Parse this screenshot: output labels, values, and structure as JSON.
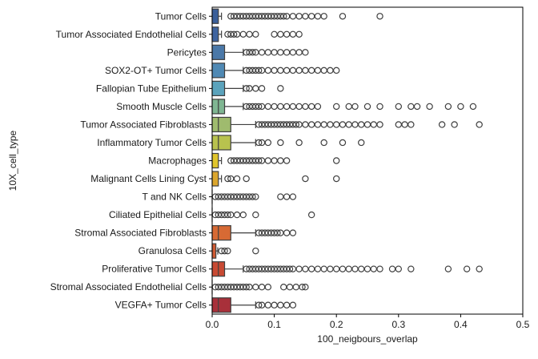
{
  "chart_data": {
    "type": "box",
    "orientation": "horizontal",
    "title": "",
    "xlabel": "100_neigbours_overlap",
    "ylabel": "10X_cell_type",
    "xlim": [
      0.0,
      0.5
    ],
    "xticks": [
      "0.0",
      "0.1",
      "0.2",
      "0.3",
      "0.4",
      "0.5"
    ],
    "xtick_values": [
      0.0,
      0.1,
      0.2,
      0.3,
      0.4,
      0.5
    ],
    "grid": false,
    "legend": "none",
    "categories": [
      {
        "label": "Tumor Cells",
        "color": "#3a5f9a",
        "q1": 0,
        "median": 0.003,
        "q3": 0.01,
        "whislo": 0,
        "whishi": 0.015,
        "outliers": [
          0.03,
          0.035,
          0.04,
          0.045,
          0.05,
          0.055,
          0.06,
          0.065,
          0.07,
          0.075,
          0.08,
          0.085,
          0.09,
          0.095,
          0.1,
          0.105,
          0.11,
          0.115,
          0.12,
          0.13,
          0.14,
          0.15,
          0.16,
          0.17,
          0.18,
          0.21,
          0.27
        ]
      },
      {
        "label": "Tumor Associated Endothelial Cells",
        "color": "#3e64a0",
        "q1": 0,
        "median": 0.003,
        "q3": 0.01,
        "whislo": 0,
        "whishi": 0.015,
        "outliers": [
          0.025,
          0.03,
          0.035,
          0.04,
          0.05,
          0.06,
          0.07,
          0.1,
          0.11,
          0.12,
          0.13,
          0.14
        ]
      },
      {
        "label": "Pericytes",
        "color": "#4a78a8",
        "q1": 0,
        "median": 0.0,
        "q3": 0.02,
        "whislo": 0,
        "whishi": 0.05,
        "outliers": [
          0.055,
          0.06,
          0.065,
          0.07,
          0.08,
          0.09,
          0.1,
          0.11,
          0.12,
          0.13,
          0.14,
          0.15
        ]
      },
      {
        "label": "SOX2-OT+ Tumor Cells",
        "color": "#4f89b4",
        "q1": 0,
        "median": 0.0,
        "q3": 0.02,
        "whislo": 0,
        "whishi": 0.05,
        "outliers": [
          0.055,
          0.06,
          0.065,
          0.07,
          0.075,
          0.08,
          0.09,
          0.1,
          0.11,
          0.12,
          0.13,
          0.14,
          0.15,
          0.16,
          0.17,
          0.18,
          0.19,
          0.2
        ]
      },
      {
        "label": "Fallopian Tube Epithelium",
        "color": "#5ba3bc",
        "q1": 0,
        "median": 0.0,
        "q3": 0.02,
        "whislo": 0,
        "whishi": 0.05,
        "outliers": [
          0.055,
          0.06,
          0.07,
          0.08,
          0.11
        ]
      },
      {
        "label": "Smooth Muscle Cells",
        "color": "#7fb692",
        "q1": 0,
        "median": 0.01,
        "q3": 0.02,
        "whislo": 0,
        "whishi": 0.05,
        "outliers": [
          0.055,
          0.06,
          0.065,
          0.07,
          0.075,
          0.08,
          0.09,
          0.1,
          0.11,
          0.12,
          0.13,
          0.14,
          0.15,
          0.16,
          0.17,
          0.2,
          0.22,
          0.23,
          0.25,
          0.27,
          0.3,
          0.32,
          0.33,
          0.35,
          0.38,
          0.4,
          0.42
        ]
      },
      {
        "label": "Tumor Associated Fibroblasts",
        "color": "#9fbb6e",
        "q1": 0,
        "median": 0.01,
        "q3": 0.03,
        "whislo": 0,
        "whishi": 0.07,
        "outliers": [
          0.075,
          0.08,
          0.085,
          0.09,
          0.095,
          0.1,
          0.105,
          0.11,
          0.115,
          0.12,
          0.125,
          0.13,
          0.135,
          0.14,
          0.15,
          0.16,
          0.17,
          0.18,
          0.19,
          0.2,
          0.21,
          0.22,
          0.23,
          0.24,
          0.25,
          0.26,
          0.27,
          0.3,
          0.31,
          0.32,
          0.37,
          0.39,
          0.43
        ]
      },
      {
        "label": "Inflammatory Tumor Cells",
        "color": "#b8c24e",
        "q1": 0,
        "median": 0.01,
        "q3": 0.03,
        "whislo": 0,
        "whishi": 0.07,
        "outliers": [
          0.075,
          0.08,
          0.09,
          0.11,
          0.14,
          0.18,
          0.21,
          0.24
        ]
      },
      {
        "label": "Macrophages",
        "color": "#e0c52c",
        "q1": 0,
        "median": 0.003,
        "q3": 0.01,
        "whislo": 0,
        "whishi": 0.015,
        "outliers": [
          0.03,
          0.035,
          0.04,
          0.045,
          0.05,
          0.055,
          0.06,
          0.065,
          0.07,
          0.075,
          0.08,
          0.09,
          0.1,
          0.11,
          0.12,
          0.2
        ]
      },
      {
        "label": "Malignant Cells Lining Cyst",
        "color": "#dba62d",
        "q1": 0,
        "median": 0.003,
        "q3": 0.01,
        "whislo": 0,
        "whishi": 0.015,
        "outliers": [
          0.025,
          0.03,
          0.04,
          0.055,
          0.15,
          0.2
        ]
      },
      {
        "label": "T and NK Cells",
        "color": "#e0902e",
        "q1": 0,
        "median": 0.0,
        "q3": 0.0,
        "whislo": 0,
        "whishi": 0.0,
        "outliers": [
          0.005,
          0.01,
          0.015,
          0.02,
          0.025,
          0.03,
          0.035,
          0.04,
          0.045,
          0.05,
          0.055,
          0.06,
          0.065,
          0.07,
          0.11,
          0.12,
          0.13
        ]
      },
      {
        "label": "Ciliated Epithelial Cells",
        "color": "#dd7d30",
        "q1": 0,
        "median": 0.0,
        "q3": 0.0,
        "whislo": 0,
        "whishi": 0.0,
        "outliers": [
          0.005,
          0.01,
          0.015,
          0.02,
          0.025,
          0.03,
          0.04,
          0.05,
          0.07,
          0.16
        ]
      },
      {
        "label": "Stromal Associated Fibroblasts",
        "color": "#d76a34",
        "q1": 0,
        "median": 0.01,
        "q3": 0.03,
        "whislo": 0,
        "whishi": 0.07,
        "outliers": [
          0.075,
          0.08,
          0.085,
          0.09,
          0.095,
          0.1,
          0.105,
          0.11,
          0.12,
          0.13
        ]
      },
      {
        "label": "Granulosa Cells",
        "color": "#cf5a33",
        "q1": 0,
        "median": 0.002,
        "q3": 0.006,
        "whislo": 0,
        "whishi": 0.009,
        "outliers": [
          0.015,
          0.02,
          0.025,
          0.07
        ]
      },
      {
        "label": "Proliferative Tumor Cells",
        "color": "#c84a33",
        "q1": 0,
        "median": 0.01,
        "q3": 0.02,
        "whislo": 0,
        "whishi": 0.05,
        "outliers": [
          0.055,
          0.06,
          0.065,
          0.07,
          0.075,
          0.08,
          0.085,
          0.09,
          0.095,
          0.1,
          0.105,
          0.11,
          0.115,
          0.12,
          0.125,
          0.13,
          0.14,
          0.15,
          0.16,
          0.17,
          0.18,
          0.19,
          0.2,
          0.21,
          0.22,
          0.23,
          0.24,
          0.25,
          0.26,
          0.27,
          0.29,
          0.3,
          0.32,
          0.38,
          0.41,
          0.43
        ]
      },
      {
        "label": "Stromal Associated Endothelial Cells",
        "color": "#bf3a35",
        "q1": 0,
        "median": 0.0,
        "q3": 0.0,
        "whislo": 0,
        "whishi": 0.0,
        "outliers": [
          0.005,
          0.01,
          0.015,
          0.02,
          0.025,
          0.03,
          0.035,
          0.04,
          0.045,
          0.05,
          0.055,
          0.06,
          0.07,
          0.08,
          0.09,
          0.115,
          0.125,
          0.135,
          0.145,
          0.15
        ]
      },
      {
        "label": "VEGFA+ Tumor Cells",
        "color": "#a8303a",
        "q1": 0,
        "median": 0.01,
        "q3": 0.03,
        "whislo": 0,
        "whishi": 0.07,
        "outliers": [
          0.075,
          0.08,
          0.09,
          0.1,
          0.11,
          0.12,
          0.13
        ]
      }
    ]
  }
}
